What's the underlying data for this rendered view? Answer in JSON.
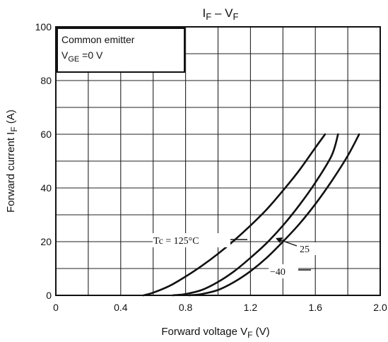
{
  "chart_data": {
    "type": "line",
    "title": {
      "main": "I",
      "main_sub": "F",
      "sep": " – V",
      "sep_sub": "F"
    },
    "xlabel": {
      "text": "Forward voltage   V",
      "sub": "F",
      "unit": "   (V)"
    },
    "ylabel": {
      "text": "Forward current   I",
      "sub": "F",
      "unit": "   (A)"
    },
    "xlim": [
      0,
      2.0
    ],
    "ylim": [
      0,
      100
    ],
    "xticks": [
      "0",
      "0.4",
      "0.8",
      "1.2",
      "1.6",
      "2.0"
    ],
    "xtick_values": [
      0,
      0.4,
      0.8,
      1.2,
      1.6,
      2.0
    ],
    "yticks": [
      "0",
      "20",
      "40",
      "60",
      "80",
      "100"
    ],
    "ytick_values": [
      0,
      20,
      40,
      60,
      80,
      100
    ],
    "grid": true,
    "legend_box": {
      "line1": "Common emitter",
      "line2_main": "V",
      "line2_sub": "GE",
      "line2_rest": " =0 V",
      "placement": "top-left"
    },
    "series": [
      {
        "name": "Tc = 125°C",
        "x": [
          0.54,
          0.6,
          0.7,
          0.8,
          0.9,
          1.0,
          1.1,
          1.2,
          1.3,
          1.4,
          1.5,
          1.6,
          1.66
        ],
        "y": [
          0,
          1.0,
          3.5,
          7.0,
          11.0,
          15.5,
          20.5,
          26.0,
          32.0,
          39.0,
          46.5,
          55.0,
          60.0
        ]
      },
      {
        "name": "25",
        "x": [
          0.72,
          0.8,
          0.9,
          1.0,
          1.1,
          1.2,
          1.3,
          1.4,
          1.5,
          1.6,
          1.7,
          1.74
        ],
        "y": [
          0,
          0.5,
          2.0,
          5.0,
          9.0,
          14.0,
          19.5,
          26.0,
          33.5,
          42.0,
          52.0,
          60.0
        ]
      },
      {
        "name": "−40",
        "x": [
          0.82,
          0.9,
          1.0,
          1.1,
          1.2,
          1.3,
          1.4,
          1.5,
          1.6,
          1.7,
          1.8,
          1.87
        ],
        "y": [
          0,
          0.5,
          2.0,
          5.0,
          9.0,
          14.0,
          20.0,
          26.5,
          34.0,
          42.5,
          52.0,
          60.0
        ]
      }
    ],
    "annotations": {
      "tc_label": "Tc = 125°C",
      "label_25": "25",
      "label_m40": "−40"
    }
  }
}
